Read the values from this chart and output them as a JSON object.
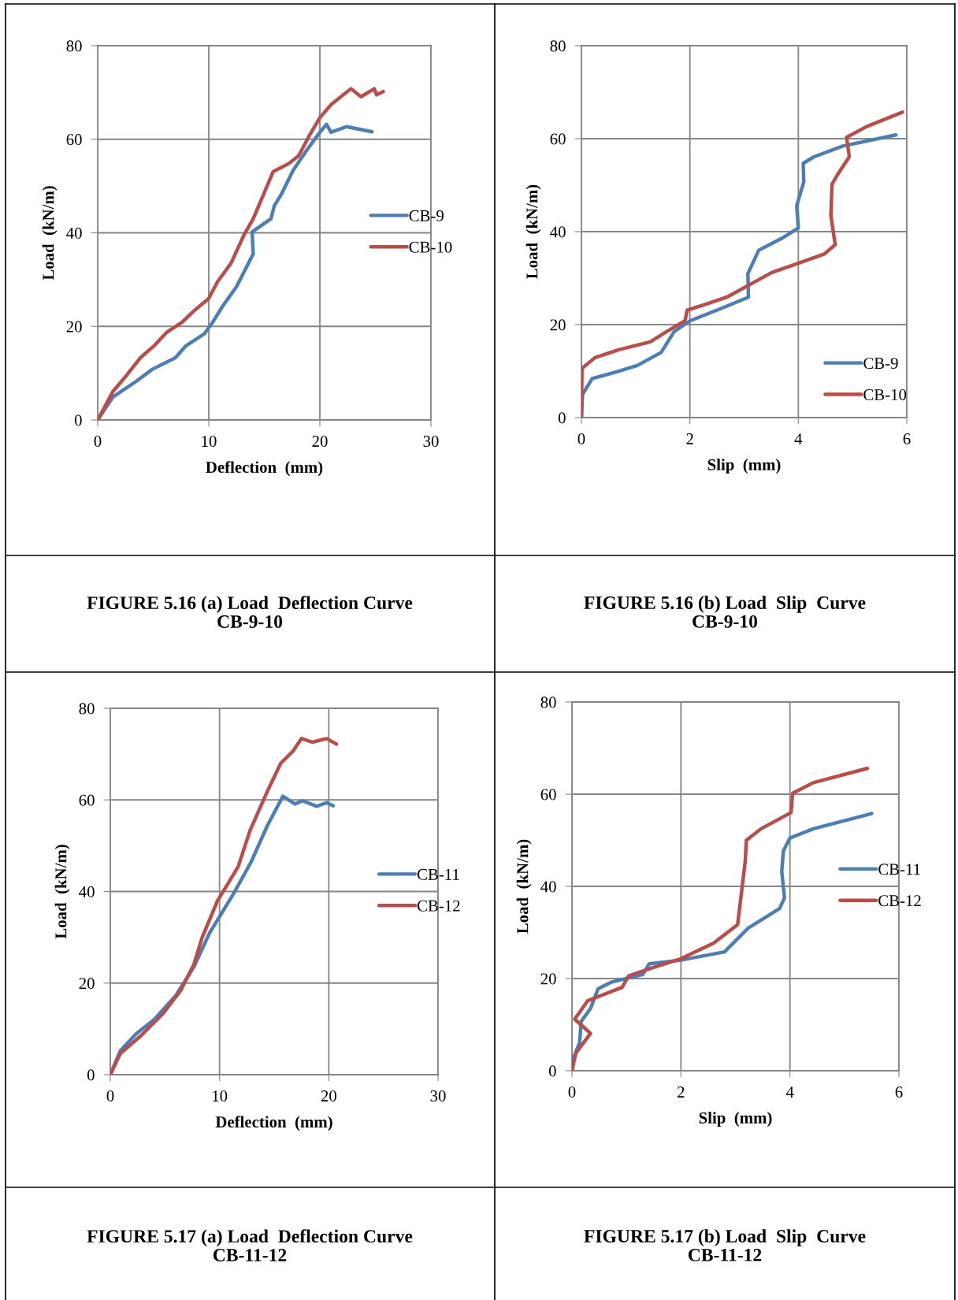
{
  "chart_data": [
    {
      "type": "line",
      "title": "FIGURE 5.16 (a) Load  Deflection Curve\nCB-9-10",
      "xlabel": "Deflection  (mm)",
      "ylabel": "Load  (kN/m)",
      "xlim": [
        0,
        30
      ],
      "xticks": [
        0,
        10,
        20,
        30
      ],
      "ylim": [
        0,
        80
      ],
      "yticks": [
        0,
        20,
        40,
        60,
        80
      ],
      "grid": true,
      "legend": "right",
      "marker": "none",
      "line_style": "solid",
      "series": [
        {
          "name": "CB-9",
          "color": "#4a7ebb",
          "x": [
            0,
            1.37,
            3.49,
            4.9,
            7.0,
            7.97,
            9.6,
            10.3,
            11.3,
            12.5,
            14.0,
            13.9,
            15.6,
            15.9,
            16.5,
            17.6,
            18.8,
            20.0,
            20.6,
            21.0,
            22.4,
            24.7
          ],
          "values": [
            0,
            4.9,
            8.3,
            10.8,
            13.3,
            15.9,
            18.4,
            20.7,
            24.5,
            28.5,
            35.5,
            40.2,
            43.0,
            45.8,
            48.1,
            53.4,
            57.6,
            61.5,
            63.2,
            61.5,
            62.7,
            61.6
          ]
        },
        {
          "name": "CB-10",
          "color": "#be4b48",
          "x": [
            0,
            1.37,
            2.55,
            3.84,
            5.1,
            6.2,
            7.6,
            8.7,
            9.97,
            10.8,
            12.0,
            13.2,
            14.0,
            15.0,
            15.8,
            17.2,
            18.1,
            19.1,
            20.0,
            21.0,
            22.8,
            23.7,
            24.9,
            25.1,
            25.7
          ],
          "values": [
            0,
            6.1,
            9.4,
            13.3,
            15.9,
            18.7,
            20.9,
            23.4,
            25.9,
            29.6,
            33.5,
            39.7,
            43.0,
            48.6,
            53.1,
            54.8,
            56.5,
            61.0,
            64.6,
            67.4,
            70.8,
            69.1,
            70.8,
            69.5,
            70.2
          ]
        }
      ]
    },
    {
      "type": "line",
      "title": "FIGURE 5.16 (b) Load  Slip  Curve\nCB-9-10",
      "xlabel": "Slip  (mm)",
      "ylabel": "Load  (kN/m)",
      "xlim": [
        0,
        6
      ],
      "xticks": [
        0,
        2,
        4,
        6
      ],
      "ylim": [
        0,
        80
      ],
      "yticks": [
        0,
        20,
        40,
        60,
        80
      ],
      "grid": true,
      "legend": "bottom right",
      "marker": "none",
      "line_style": "solid",
      "series": [
        {
          "name": "CB-9",
          "color": "#4a7ebb",
          "x": [
            0,
            0.02,
            0.2,
            0.64,
            1.03,
            1.47,
            1.71,
            2.0,
            2.54,
            3.08,
            3.07,
            3.27,
            3.7,
            4.0,
            3.97,
            4.1,
            4.09,
            4.29,
            4.82,
            5.8
          ],
          "values": [
            0,
            5.0,
            8.4,
            9.8,
            11.2,
            14.0,
            18.5,
            20.8,
            23.3,
            25.9,
            31.0,
            36.0,
            38.6,
            40.8,
            45.6,
            50.7,
            54.7,
            56.1,
            58.4,
            60.8
          ]
        },
        {
          "name": "CB-10",
          "color": "#be4b48",
          "x": [
            0,
            0.01,
            0.25,
            0.69,
            1.27,
            1.57,
            1.91,
            1.95,
            2.25,
            2.68,
            3.12,
            3.51,
            4.0,
            4.48,
            4.68,
            4.6,
            4.62,
            4.73,
            4.94,
            4.89,
            5.26,
            5.92
          ],
          "values": [
            0,
            10.6,
            12.9,
            14.6,
            16.3,
            18.5,
            20.8,
            23.1,
            24.2,
            25.9,
            28.7,
            31.2,
            33.2,
            35.2,
            37.2,
            43.4,
            50.2,
            52.4,
            56.1,
            60.3,
            62.6,
            65.7
          ]
        }
      ]
    },
    {
      "type": "line",
      "title": "FIGURE 5.17 (a) Load  Deflection Curve\nCB-11-12",
      "xlabel": "Deflection  (mm)",
      "ylabel": "Load  (kN/m)",
      "xlim": [
        0,
        30
      ],
      "xticks": [
        0,
        10,
        20,
        30
      ],
      "ylim": [
        0,
        80
      ],
      "yticks": [
        0,
        20,
        40,
        60,
        80
      ],
      "grid": true,
      "legend": "right",
      "marker": "none",
      "line_style": "solid",
      "series": [
        {
          "name": "CB-11",
          "color": "#4a7ebb",
          "x": [
            0,
            0.91,
            2.36,
            4.04,
            5.97,
            7.65,
            9.1,
            11.3,
            12.9,
            14.4,
            15.8,
            16.9,
            17.6,
            18.9,
            19.8,
            20.4
          ],
          "values": [
            0,
            5.2,
            8.9,
            12.1,
            17.2,
            23.5,
            31.0,
            39.6,
            46.5,
            54.5,
            60.8,
            59.1,
            59.8,
            58.6,
            59.4,
            58.7
          ]
        },
        {
          "name": "CB-12",
          "color": "#be4b48",
          "x": [
            0,
            0.91,
            2.84,
            4.77,
            6.45,
            7.65,
            8.4,
            9.8,
            11.7,
            12.8,
            14.4,
            15.6,
            16.7,
            17.5,
            18.5,
            19.8,
            20.7
          ],
          "values": [
            0,
            4.6,
            8.6,
            13.2,
            18.4,
            24.1,
            29.9,
            37.9,
            45.4,
            53.4,
            62.0,
            68.0,
            70.6,
            73.4,
            72.6,
            73.4,
            72.2
          ]
        }
      ]
    },
    {
      "type": "line",
      "title": "FIGURE 5.17 (b) Load  Slip  Curve\nCB-11-12",
      "xlabel": "Slip  (mm)",
      "ylabel": "Load  (kN/m)",
      "xlim": [
        0,
        6
      ],
      "xticks": [
        0,
        2,
        4,
        6
      ],
      "ylim": [
        0,
        80
      ],
      "yticks": [
        0,
        20,
        40,
        60,
        80
      ],
      "grid": true,
      "legend": "right",
      "marker": "none",
      "line_style": "solid",
      "series": [
        {
          "name": "CB-11",
          "color": "#4a7ebb",
          "x": [
            0,
            0.02,
            0.14,
            0.17,
            0.34,
            0.48,
            0.72,
            1.3,
            1.42,
            2.0,
            2.8,
            3.23,
            3.81,
            3.9,
            3.85,
            3.88,
            4.0,
            4.43,
            5.5
          ],
          "values": [
            0,
            2.5,
            6.1,
            10.7,
            13.5,
            17.8,
            19.2,
            20.9,
            23.2,
            24.0,
            25.8,
            30.9,
            35.2,
            37.5,
            43.2,
            47.7,
            50.5,
            52.5,
            55.8
          ]
        },
        {
          "name": "CB-12",
          "color": "#be4b48",
          "x": [
            0,
            0.07,
            0.34,
            0.05,
            0.29,
            0.92,
            1.04,
            1.54,
            2.0,
            2.6,
            3.04,
            3.18,
            3.2,
            3.47,
            4.02,
            4.05,
            4.43,
            5.42
          ],
          "values": [
            0,
            3.8,
            8.1,
            11.2,
            15.2,
            18.1,
            20.6,
            22.6,
            24.3,
            27.7,
            31.7,
            45.5,
            50.0,
            52.5,
            56.0,
            60.2,
            62.5,
            65.6
          ]
        }
      ]
    }
  ]
}
